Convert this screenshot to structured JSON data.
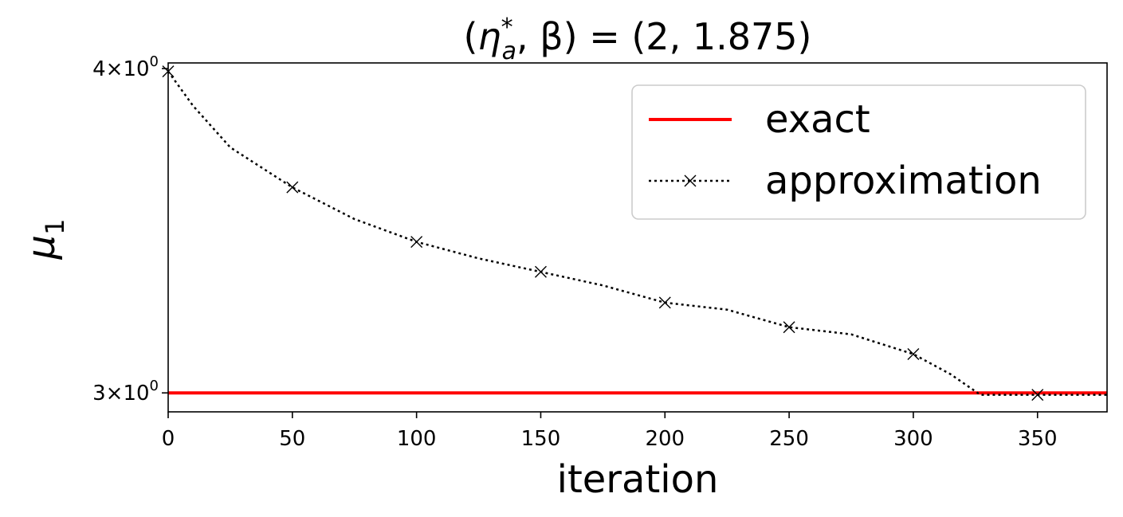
{
  "chart_data": {
    "type": "line",
    "title": {
      "open": "(",
      "eta": "η",
      "eta_sup": "*",
      "eta_sub": "a",
      "mid": ", β) = (2, 1.875)"
    },
    "xlabel": "iteration",
    "ylabel": {
      "base": "μ",
      "sub": "1"
    },
    "xlim": [
      0,
      378
    ],
    "ylim": [
      2.95,
      4.02
    ],
    "yscale": "log",
    "grid": false,
    "legend_position": "top-right",
    "x_ticks": [
      0,
      50,
      100,
      150,
      200,
      250,
      300,
      350
    ],
    "y_ticks": [
      {
        "value": 4,
        "mantissa": "4",
        "base": "10",
        "exp": "0"
      },
      {
        "value": 3,
        "mantissa": "3",
        "base": "10",
        "exp": "0"
      }
    ],
    "series": [
      {
        "name": "exact",
        "color": "#ff0000",
        "style": "solid",
        "x": [
          0,
          378
        ],
        "y": [
          3.0,
          3.0
        ]
      },
      {
        "name": "approximation",
        "color": "#000000",
        "style": "dotted",
        "marker": "x",
        "x": [
          0,
          10,
          25,
          50,
          75,
          100,
          125,
          150,
          175,
          200,
          225,
          250,
          275,
          300,
          315,
          327,
          340,
          350,
          378
        ],
        "y": [
          3.99,
          3.87,
          3.73,
          3.6,
          3.5,
          3.43,
          3.38,
          3.34,
          3.3,
          3.25,
          3.23,
          3.18,
          3.16,
          3.105,
          3.05,
          2.995,
          2.995,
          2.995,
          2.995
        ],
        "marker_x": [
          0,
          50,
          100,
          150,
          200,
          250,
          300,
          350
        ],
        "marker_y": [
          3.99,
          3.6,
          3.43,
          3.34,
          3.25,
          3.18,
          3.105,
          2.995
        ]
      }
    ]
  }
}
